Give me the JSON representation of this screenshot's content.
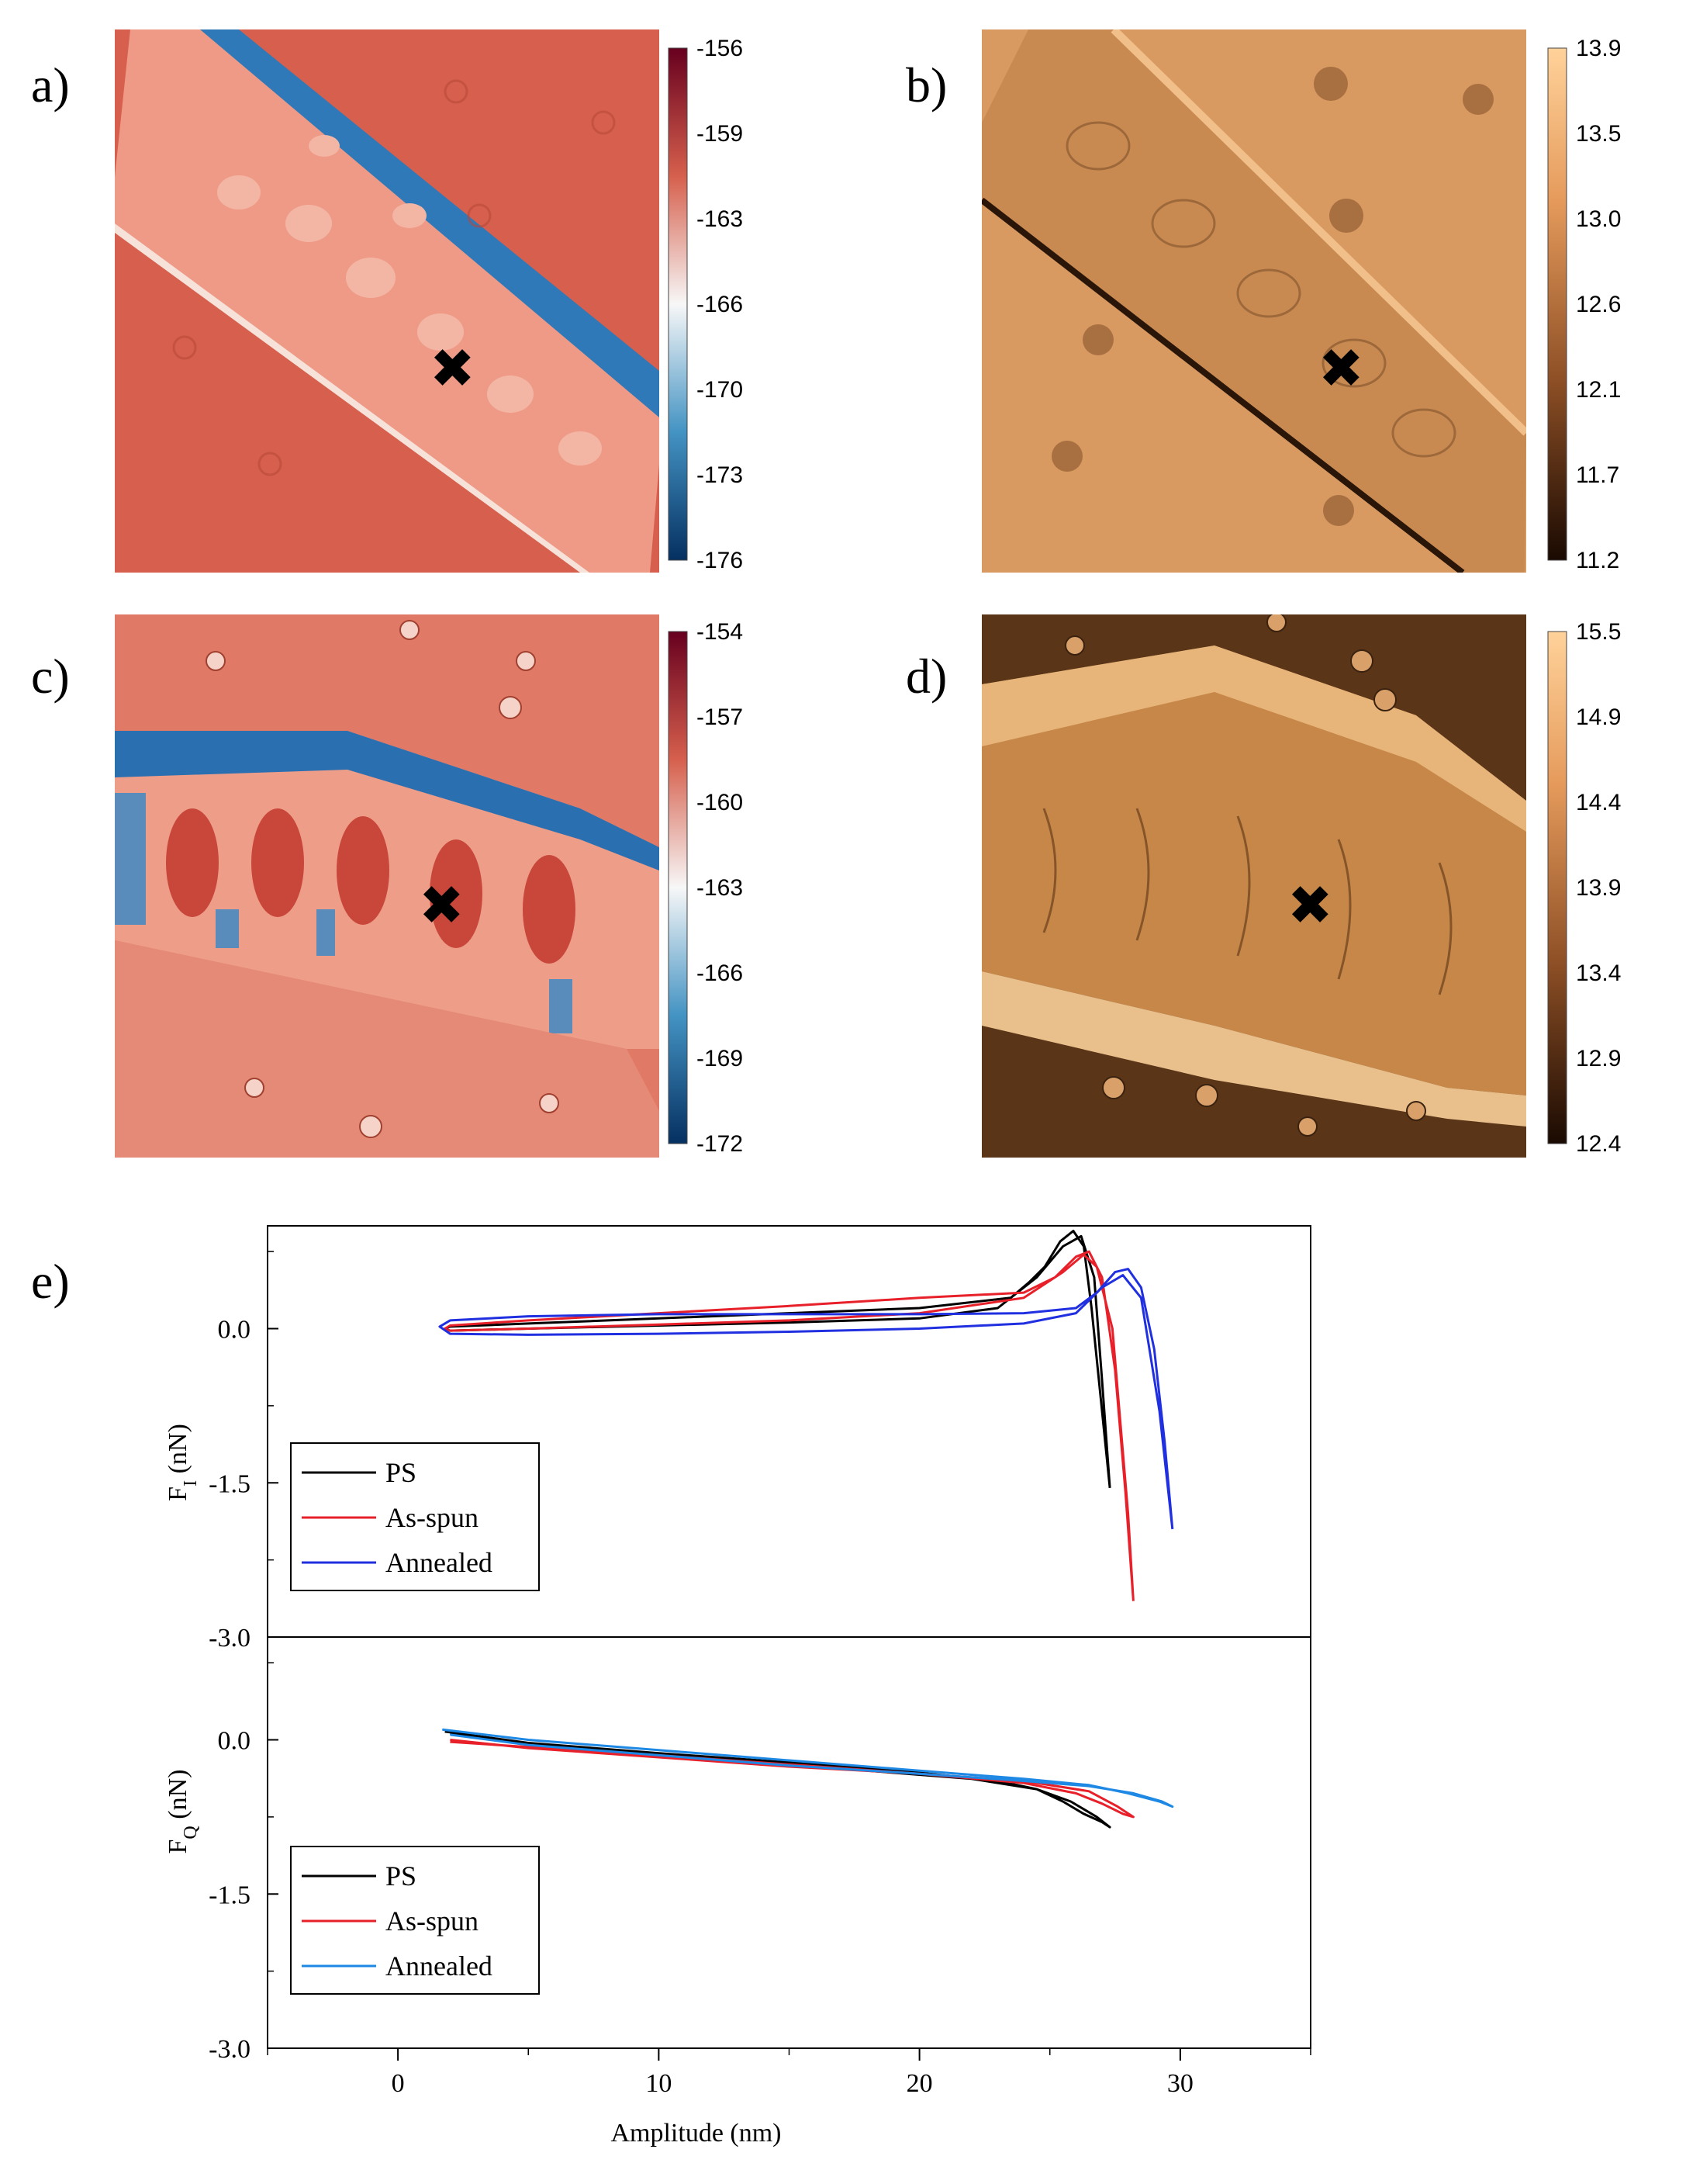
{
  "panels": {
    "a": {
      "label": "a)",
      "colorbar_ticks": [
        "-156",
        "-159",
        "-163",
        "-166",
        "-170",
        "-173",
        "-176"
      ],
      "colormap": "red-white-blue",
      "marker": "✖"
    },
    "b": {
      "label": "b)",
      "colorbar_ticks": [
        "13.9",
        "13.5",
        "13.0",
        "12.6",
        "12.1",
        "11.7",
        "11.2"
      ],
      "colormap": "copper",
      "marker": "✖"
    },
    "c": {
      "label": "c)",
      "colorbar_ticks": [
        "-154",
        "-157",
        "-160",
        "-163",
        "-166",
        "-169",
        "-172"
      ],
      "colormap": "red-white-blue",
      "marker": "✖"
    },
    "d": {
      "label": "d)",
      "colorbar_ticks": [
        "15.5",
        "14.9",
        "14.4",
        "13.9",
        "13.4",
        "12.9",
        "12.4"
      ],
      "colormap": "copper",
      "marker": "✖"
    },
    "e": {
      "label": "e)"
    }
  },
  "colors": {
    "map_red": "#d6604d",
    "map_blue": "#2166ac",
    "copper": "#d99a62",
    "copper_dark": "#3a2210",
    "ps": "#000000",
    "as_spun": "#e8202a",
    "annealed": "#2030e0",
    "annealed_q": "#1e88e5"
  },
  "chart_data": {
    "type": "line",
    "xlabel": "Amplitude (nm)",
    "xlim": [
      -5,
      35
    ],
    "xticks": [
      "0",
      "10",
      "20",
      "30"
    ],
    "subplots": [
      {
        "ylabel": "F",
        "ylabel_sub": "I",
        "ylabel_unit": " (nN)",
        "ylim": [
          -3.0,
          1.0
        ],
        "yticks": [
          "0.0",
          "-1.5",
          "-3.0"
        ],
        "legend": "bottom-left",
        "series": [
          {
            "name": "PS",
            "color": "#000000",
            "x": [
              27.3,
              27.0,
              26.6,
              26.3,
              25.9,
              25.4,
              24.8,
              24.2,
              23.5,
              20,
              15,
              10,
              5,
              2,
              1.8,
              2,
              5,
              10,
              15,
              20,
              23,
              24.5,
              25.5,
              26.2,
              26.7,
              27.0,
              27.3
            ],
            "y": [
              -1.55,
              -0.8,
              0.2,
              0.8,
              0.95,
              0.85,
              0.6,
              0.45,
              0.3,
              0.2,
              0.15,
              0.1,
              0.05,
              0.02,
              0.0,
              -0.02,
              0.0,
              0.03,
              0.06,
              0.1,
              0.2,
              0.5,
              0.8,
              0.9,
              0.5,
              -0.5,
              -1.55
            ]
          },
          {
            "name": "As-spun",
            "color": "#e8202a",
            "x": [
              28.2,
              27.9,
              27.5,
              27.0,
              26.5,
              26.0,
              25.2,
              24.0,
              20,
              15,
              10,
              5,
              2,
              1.8,
              2,
              5,
              10,
              15,
              20,
              24,
              25.5,
              26.3,
              26.8,
              27.4,
              28.0,
              28.2
            ],
            "y": [
              -2.65,
              -1.6,
              -0.4,
              0.5,
              0.75,
              0.7,
              0.5,
              0.35,
              0.3,
              0.22,
              0.15,
              0.08,
              0.03,
              0.0,
              -0.02,
              0.0,
              0.04,
              0.08,
              0.15,
              0.3,
              0.55,
              0.72,
              0.6,
              0.0,
              -1.8,
              -2.65
            ]
          },
          {
            "name": "Annealed",
            "color": "#2030e0",
            "x": [
              29.7,
              29.4,
              29.0,
              28.5,
              28.0,
              27.5,
              26.8,
              26.0,
              24,
              20,
              15,
              10,
              5,
              2,
              1.6,
              2,
              5,
              10,
              15,
              20,
              24,
              26.0,
              27.0,
              27.8,
              28.5,
              29.2,
              29.7
            ],
            "y": [
              -1.95,
              -1.1,
              -0.2,
              0.4,
              0.58,
              0.55,
              0.35,
              0.2,
              0.15,
              0.14,
              0.14,
              0.14,
              0.12,
              0.08,
              0.02,
              -0.05,
              -0.06,
              -0.05,
              -0.03,
              0.0,
              0.05,
              0.15,
              0.4,
              0.52,
              0.3,
              -0.8,
              -1.95
            ]
          }
        ]
      },
      {
        "ylabel": "F",
        "ylabel_sub": "Q",
        "ylabel_unit": " (nN)",
        "ylim": [
          -3.0,
          1.0
        ],
        "yticks": [
          "0.0",
          "-1.5",
          "-3.0"
        ],
        "legend": "bottom-left",
        "series": [
          {
            "name": "PS",
            "color": "#000000",
            "x": [
              1.8,
              5,
              10,
              15,
              20,
              23,
              24.5,
              25.5,
              26.3,
              27.0,
              27.3,
              26.8,
              25.8,
              24.5,
              22,
              18,
              14,
              10,
              6,
              2
            ],
            "y": [
              0.08,
              -0.03,
              -0.13,
              -0.22,
              -0.32,
              -0.4,
              -0.48,
              -0.6,
              -0.72,
              -0.8,
              -0.85,
              -0.75,
              -0.6,
              -0.48,
              -0.38,
              -0.3,
              -0.22,
              -0.14,
              -0.06,
              0.06
            ]
          },
          {
            "name": "As-spun",
            "color": "#e8202a",
            "x": [
              2,
              5,
              10,
              15,
              20,
              24,
              26,
              27,
              27.8,
              28.2,
              27.6,
              26.5,
              24,
              20,
              15,
              10,
              5,
              2
            ],
            "y": [
              -0.02,
              -0.07,
              -0.15,
              -0.24,
              -0.33,
              -0.42,
              -0.52,
              -0.62,
              -0.72,
              -0.75,
              -0.65,
              -0.5,
              -0.4,
              -0.33,
              -0.26,
              -0.17,
              -0.08,
              0.0
            ]
          },
          {
            "name": "Annealed",
            "color": "#1e88e5",
            "x": [
              1.7,
              5,
              10,
              15,
              20,
              24,
              26.5,
              28,
              29.2,
              29.7,
              29.3,
              28.2,
              26.5,
              24,
              20,
              15,
              10,
              5,
              2
            ],
            "y": [
              0.1,
              0.0,
              -0.1,
              -0.2,
              -0.3,
              -0.38,
              -0.44,
              -0.52,
              -0.6,
              -0.65,
              -0.6,
              -0.52,
              -0.45,
              -0.4,
              -0.33,
              -0.25,
              -0.15,
              -0.05,
              0.05
            ]
          }
        ]
      }
    ]
  }
}
